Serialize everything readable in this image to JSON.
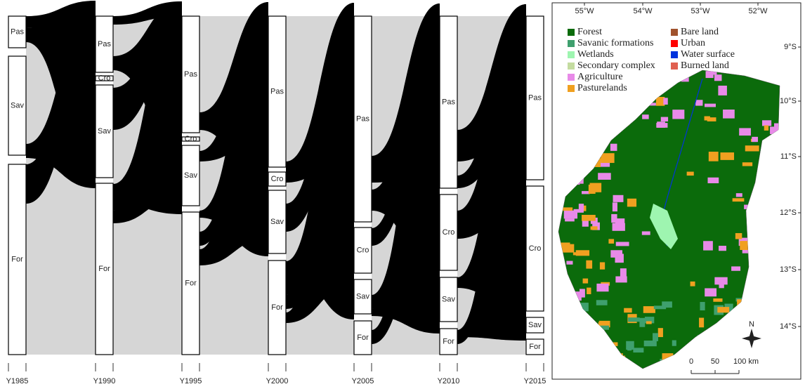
{
  "alluvial": {
    "years": [
      "Y1985",
      "Y1990",
      "Y1995",
      "Y2000",
      "Y2005",
      "Y2010",
      "Y2015"
    ],
    "columns": [
      {
        "nodes": [
          "Pas",
          "Sav",
          "For"
        ]
      },
      {
        "nodes": [
          "Pas",
          "Cro",
          "Sav",
          "For"
        ]
      },
      {
        "nodes": [
          "Pas",
          "Cro",
          "Sav",
          "For"
        ]
      },
      {
        "nodes": [
          "Pas",
          "Cro",
          "Sav",
          "For"
        ]
      },
      {
        "nodes": [
          "Pas",
          "Cro",
          "Sav",
          "For"
        ]
      },
      {
        "nodes": [
          "Pas",
          "Cro",
          "Sav",
          "For"
        ]
      },
      {
        "nodes": [
          "Pas",
          "Cro",
          "Sav",
          "For"
        ]
      }
    ]
  },
  "map": {
    "legend": [
      {
        "label": "Forest",
        "color": "#0b6b0b"
      },
      {
        "label": "Savanic formations",
        "color": "#3fa06e"
      },
      {
        "label": "Wetlands",
        "color": "#9ef5b0"
      },
      {
        "label": "Secondary complex",
        "color": "#c4dca0"
      },
      {
        "label": "Agriculture",
        "color": "#e88ae8"
      },
      {
        "label": "Pasturelands",
        "color": "#f0a020"
      },
      {
        "label": "Bare land",
        "color": "#a0522d"
      },
      {
        "label": "Urban",
        "color": "#ff0000"
      },
      {
        "label": "Water surface",
        "color": "#0033dd"
      },
      {
        "label": "Burned land",
        "color": "#e06050"
      }
    ],
    "lon_labels": [
      "55°W",
      "54°W",
      "53°W",
      "52°W"
    ],
    "lat_labels": [
      "9°S",
      "10°S",
      "11°S",
      "12°S",
      "13°S",
      "14°S"
    ],
    "scale_labels": [
      "0",
      "50",
      "100 km"
    ],
    "north": "N"
  }
}
